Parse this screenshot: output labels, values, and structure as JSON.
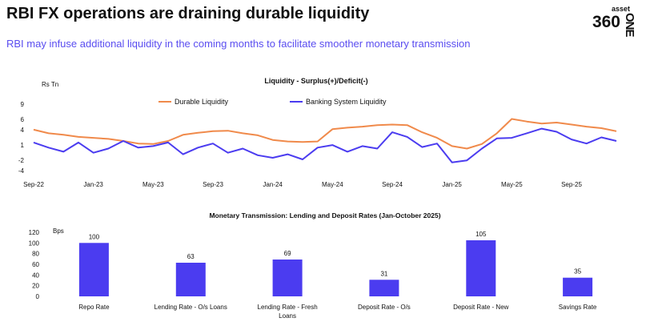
{
  "header": {
    "title": "RBI FX operations are draining durable liquidity",
    "subtitle": "RBI may infuse additional liquidity in the coming months to facilitate smoother monetary transmission",
    "logo_small": "asset",
    "logo_big": "360",
    "logo_vertical": "ONE"
  },
  "colors": {
    "durable": "#f08a4b",
    "banking": "#4b3cf0",
    "bars": "#4b3cf0",
    "subtitle": "#5a4df0"
  },
  "chart_data": [
    {
      "type": "line",
      "title": "Liquidity - Surplus(+)/Deficit(-)",
      "ylabel": "Rs Tn",
      "ylim": [
        -4,
        9
      ],
      "yticks": [
        -4,
        -2,
        1,
        4,
        6,
        9
      ],
      "xlim": [
        0,
        39
      ],
      "xticks": [
        {
          "label": "Sep-22",
          "x": 0
        },
        {
          "label": "Jan-23",
          "x": 4
        },
        {
          "label": "May-23",
          "x": 8
        },
        {
          "label": "Sep-23",
          "x": 12
        },
        {
          "label": "Jan-24",
          "x": 16
        },
        {
          "label": "May-24",
          "x": 20
        },
        {
          "label": "Sep-24",
          "x": 24
        },
        {
          "label": "Jan-25",
          "x": 28
        },
        {
          "label": "May-25",
          "x": 32
        },
        {
          "label": "Sep-25",
          "x": 36
        }
      ],
      "series": [
        {
          "name": "Durable Liquidity",
          "x": [
            0,
            1,
            2,
            3,
            4,
            5,
            6,
            7,
            8,
            9,
            10,
            11,
            12,
            13,
            14,
            15,
            16,
            17,
            18,
            19,
            20,
            21,
            22,
            23,
            24,
            25,
            26,
            27,
            28,
            29,
            30,
            31,
            32,
            33,
            34,
            35,
            36,
            37,
            38,
            39
          ],
          "values": [
            4,
            3.3,
            3,
            2.6,
            2.4,
            2.2,
            1.8,
            1.3,
            1.2,
            1.8,
            3,
            3.4,
            3.7,
            3.8,
            3.3,
            2.9,
            2,
            1.7,
            1.6,
            1.7,
            4.1,
            4.4,
            4.6,
            4.9,
            5,
            4.9,
            3.5,
            2.4,
            0.8,
            0.3,
            1.2,
            3.3,
            6.1,
            5.6,
            5.2,
            5.4,
            5,
            4.6,
            4.3,
            3.7
          ]
        },
        {
          "name": "Banking System Liquidity",
          "x": [
            0,
            1,
            2,
            3,
            4,
            5,
            6,
            7,
            8,
            9,
            10,
            11,
            12,
            13,
            14,
            15,
            16,
            17,
            18,
            19,
            20,
            21,
            22,
            23,
            24,
            25,
            26,
            27,
            28,
            29,
            30,
            31,
            32,
            33,
            34,
            35,
            36,
            37,
            38,
            39
          ],
          "values": [
            1.5,
            0.5,
            -0.3,
            1.5,
            -0.5,
            0.3,
            1.8,
            0.5,
            0.8,
            1.5,
            -0.8,
            0.5,
            1.3,
            -0.5,
            0.3,
            -1,
            -1.5,
            -0.8,
            -1.8,
            0.5,
            1,
            -0.3,
            0.8,
            0.3,
            3.5,
            2.6,
            0.6,
            1.3,
            -2.4,
            -2,
            0.3,
            2.3,
            2.4,
            3.3,
            4.2,
            3.6,
            2.1,
            1.3,
            2.5,
            1.8
          ]
        }
      ]
    },
    {
      "type": "bar",
      "title": "Monetary Transmission: Lending and Deposit Rates (Jan-October 2025)",
      "ylabel": "Bps",
      "ylim": [
        0,
        120
      ],
      "yticks": [
        0,
        20,
        40,
        60,
        80,
        100,
        120
      ],
      "categories": [
        "Repo Rate",
        "Lending Rate - O/s Loans",
        "Lending Rate - Fresh Loans",
        "Deposit Rate - O/s",
        "Deposit Rate - New",
        "Savings Rate"
      ],
      "values": [
        100,
        63,
        69,
        31,
        105,
        35
      ],
      "labels": [
        "100",
        "63",
        "69",
        "31",
        "105",
        "35"
      ]
    }
  ]
}
